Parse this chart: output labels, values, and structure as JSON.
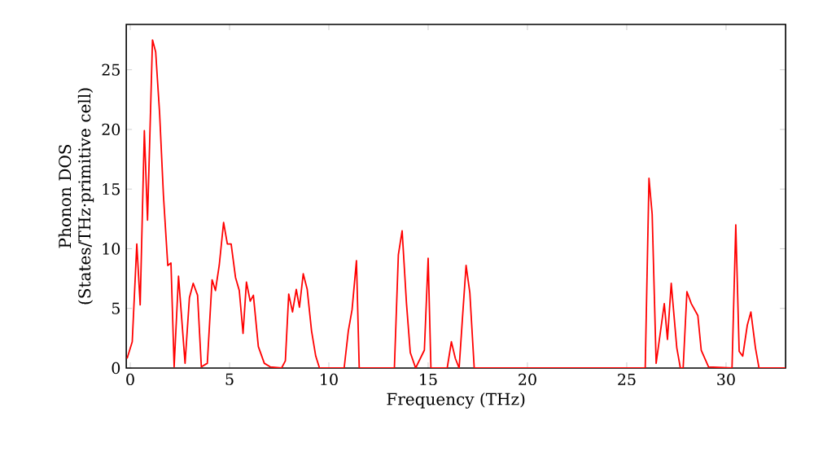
{
  "chart_data": {
    "type": "line",
    "xlabel": "Frequency (THz)",
    "ylabel": "Phonon DOS (States/THz·primitive cell)",
    "xlim": [
      -0.2,
      33
    ],
    "ylim": [
      0,
      28.8
    ],
    "xticks": [
      0,
      5,
      10,
      15,
      20,
      25,
      30
    ],
    "yticks": [
      0,
      5,
      10,
      15,
      20,
      25
    ],
    "marker": "none",
    "line_style": "solid",
    "series": [
      {
        "color": "#ff0000",
        "x": [
          -0.16,
          0.1,
          0.33,
          0.5,
          0.71,
          0.87,
          1.12,
          1.28,
          1.48,
          1.67,
          1.89,
          2.05,
          2.21,
          2.43,
          2.76,
          2.98,
          3.17,
          3.39,
          3.58,
          3.88,
          4.12,
          4.29,
          4.48,
          4.7,
          4.89,
          5.08,
          5.3,
          5.49,
          5.68,
          5.85,
          6.04,
          6.2,
          6.45,
          6.75,
          7.05,
          7.62,
          7.81,
          7.98,
          8.17,
          8.36,
          8.52,
          8.71,
          8.91,
          9.13,
          9.34,
          9.53,
          10.77,
          10.98,
          11.17,
          11.39,
          11.53,
          13.3,
          13.5,
          13.69,
          13.91,
          14.1,
          14.37,
          14.81,
          15.0,
          15.14,
          15.96,
          16.17,
          16.37,
          16.56,
          16.72,
          16.91,
          17.1,
          17.32,
          25.93,
          26.12,
          26.28,
          26.48,
          26.89,
          27.05,
          27.24,
          27.52,
          27.7,
          27.84,
          28.03,
          28.25,
          28.58,
          28.75,
          29.12,
          30.3,
          30.49,
          30.66,
          30.84,
          31.07,
          31.25,
          31.48,
          31.66,
          33
        ],
        "values": [
          0.8,
          2.2,
          10.4,
          5.3,
          19.9,
          12.4,
          27.5,
          26.5,
          21.3,
          14.5,
          8.6,
          8.8,
          0.1,
          7.7,
          0.4,
          5.9,
          7.1,
          6.1,
          0.1,
          0.4,
          7.4,
          6.5,
          8.6,
          12.2,
          10.4,
          10.4,
          7.6,
          6.5,
          2.9,
          7.2,
          5.6,
          6.1,
          1.8,
          0.4,
          0.1,
          0,
          0.6,
          6.2,
          4.7,
          6.6,
          5.1,
          7.9,
          6.6,
          3.1,
          1.0,
          0,
          0,
          3.1,
          4.9,
          9.0,
          0,
          0,
          9.5,
          11.5,
          5.4,
          1.3,
          0,
          1.5,
          9.2,
          0,
          0,
          2.2,
          0.8,
          0,
          4.0,
          8.6,
          6.3,
          0,
          0,
          15.9,
          12.9,
          0.4,
          5.4,
          2.4,
          7.1,
          1.7,
          0,
          0,
          6.4,
          5.4,
          4.4,
          1.5,
          0.1,
          0,
          12.0,
          1.4,
          1.0,
          3.6,
          4.7,
          1.7,
          0,
          0
        ]
      }
    ]
  }
}
